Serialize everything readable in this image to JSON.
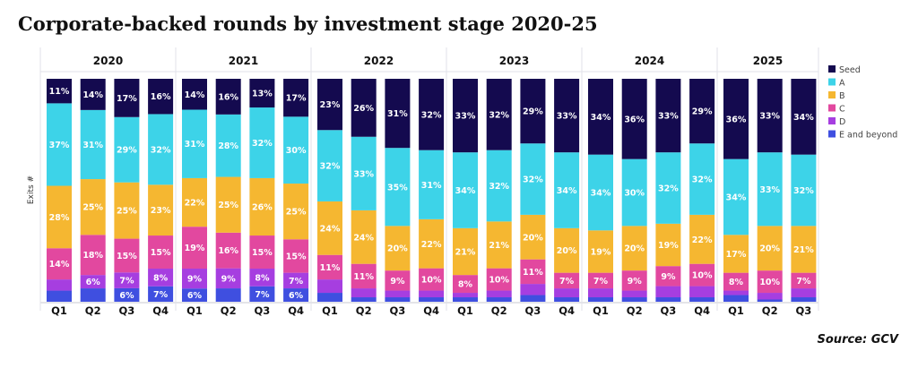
{
  "title": "Corporate-backed rounds by investment stage 2020-25",
  "source": "Source: GCV",
  "chart_data": {
    "type": "bar",
    "stacked": true,
    "normalized_percent": true,
    "title": "Corporate-backed rounds by investment stage 2020-25",
    "ylabel": "Exits #",
    "legend_position": "right",
    "groups": [
      {
        "year": "2020",
        "quarters": [
          "Q1",
          "Q2",
          "Q3",
          "Q4"
        ]
      },
      {
        "year": "2021",
        "quarters": [
          "Q1",
          "Q2",
          "Q3",
          "Q4"
        ]
      },
      {
        "year": "2022",
        "quarters": [
          "Q1",
          "Q2",
          "Q3",
          "Q4"
        ]
      },
      {
        "year": "2023",
        "quarters": [
          "Q1",
          "Q2",
          "Q3",
          "Q4"
        ]
      },
      {
        "year": "2024",
        "quarters": [
          "Q1",
          "Q2",
          "Q3",
          "Q4"
        ]
      },
      {
        "year": "2025",
        "quarters": [
          "Q1",
          "Q2",
          "Q3"
        ]
      }
    ],
    "series": [
      {
        "name": "E and beyond",
        "color": "#3f4fe0",
        "values": [
          5,
          6,
          6,
          7,
          6,
          6,
          7,
          6,
          4,
          2,
          2,
          2,
          2,
          2,
          3,
          2,
          2,
          2,
          2,
          2,
          3,
          1,
          2
        ],
        "labels": [
          null,
          null,
          "6%",
          "7%",
          "6%",
          null,
          "7%",
          "6%",
          null,
          null,
          null,
          null,
          null,
          null,
          null,
          null,
          null,
          null,
          null,
          null,
          null,
          null,
          null
        ]
      },
      {
        "name": "D",
        "color": "#a63ee0",
        "values": [
          5,
          6,
          7,
          8,
          9,
          9,
          8,
          7,
          6,
          4,
          3,
          3,
          2,
          3,
          5,
          4,
          4,
          3,
          5,
          5,
          2,
          3,
          4
        ],
        "labels": [
          null,
          "6%",
          "7%",
          "8%",
          "9%",
          "9%",
          "8%",
          "7%",
          null,
          null,
          null,
          null,
          null,
          null,
          null,
          null,
          null,
          null,
          null,
          null,
          null,
          null,
          null
        ]
      },
      {
        "name": "C",
        "color": "#e2489f",
        "values": [
          14,
          18,
          15,
          15,
          19,
          16,
          15,
          15,
          11,
          11,
          9,
          10,
          8,
          10,
          11,
          7,
          7,
          9,
          9,
          10,
          8,
          10,
          7
        ],
        "labels": [
          "14%",
          "18%",
          "15%",
          "15%",
          "19%",
          "16%",
          "15%",
          "15%",
          "11%",
          "11%",
          "9%",
          "10%",
          "8%",
          "10%",
          "11%",
          "7%",
          "7%",
          "9%",
          "9%",
          "10%",
          "8%",
          "10%",
          "7%"
        ]
      },
      {
        "name": "B",
        "color": "#f5b731",
        "values": [
          28,
          25,
          25,
          23,
          22,
          25,
          26,
          25,
          24,
          24,
          20,
          22,
          21,
          21,
          20,
          20,
          19,
          20,
          19,
          22,
          17,
          20,
          21
        ],
        "labels": [
          "28%",
          "25%",
          "25%",
          "23%",
          "22%",
          "25%",
          "26%",
          "25%",
          "24%",
          "24%",
          "20%",
          "22%",
          "21%",
          "21%",
          "20%",
          "20%",
          "19%",
          "20%",
          "19%",
          "22%",
          "17%",
          "20%",
          "21%"
        ]
      },
      {
        "name": "A",
        "color": "#3dd3e8",
        "values": [
          37,
          31,
          29,
          32,
          31,
          28,
          32,
          30,
          32,
          33,
          35,
          31,
          34,
          32,
          32,
          34,
          34,
          30,
          32,
          32,
          34,
          33,
          32
        ],
        "labels": [
          "37%",
          "31%",
          "29%",
          "32%",
          "31%",
          "28%",
          "32%",
          "30%",
          "32%",
          "33%",
          "35%",
          "31%",
          "34%",
          "32%",
          "32%",
          "34%",
          "34%",
          "30%",
          "32%",
          "32%",
          "34%",
          "33%",
          "32%"
        ]
      },
      {
        "name": "Seed",
        "color": "#140a4f",
        "values": [
          11,
          14,
          17,
          16,
          14,
          16,
          13,
          17,
          23,
          26,
          31,
          32,
          33,
          32,
          29,
          33,
          34,
          36,
          33,
          29,
          36,
          33,
          34
        ],
        "labels": [
          "11%",
          "14%",
          "17%",
          "16%",
          "14%",
          "16%",
          "13%",
          "17%",
          "23%",
          "26%",
          "31%",
          "32%",
          "33%",
          "32%",
          "29%",
          "33%",
          "34%",
          "36%",
          "33%",
          "29%",
          "36%",
          "33%",
          "34%"
        ]
      }
    ],
    "legend_order": [
      "Seed",
      "A",
      "B",
      "C",
      "D",
      "E and beyond"
    ],
    "grid": false
  }
}
